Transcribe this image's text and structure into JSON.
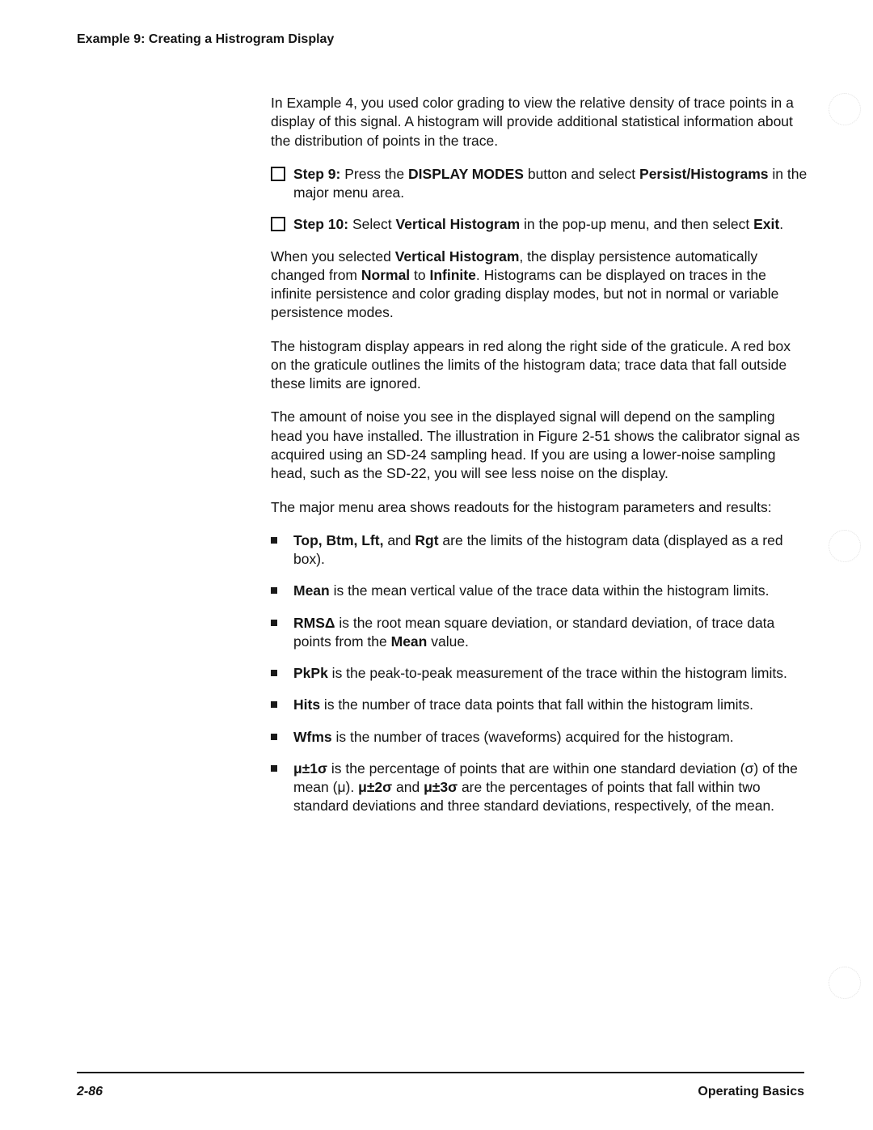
{
  "header": "Example 9: Creating a Histrogram Display",
  "intro": {
    "pre": "In Example 4, you used color grading to view the relative density of trace points in a display of this signal. A histogram will provide additional statistical information about the distribution of points in the trace."
  },
  "step9": {
    "label": "Step 9:",
    "t1": "  Press the ",
    "b1": "DISPLAY MODES",
    "t2": " button and select ",
    "b2": "Persist/Histograms",
    "t3": " in the major menu area."
  },
  "step10": {
    "label": "Step 10:",
    "t1": "  Select ",
    "b1": "Vertical Histogram",
    "t2": " in the pop-up menu, and then select ",
    "b2": "Exit",
    "t3": "."
  },
  "para2": {
    "t1": "When you selected ",
    "b1": "Vertical Histogram",
    "t2": ", the display persistence automatically changed from ",
    "b2": "Normal",
    "t3": " to ",
    "b3": "Infinite",
    "t4": ". Histograms can be displayed on traces in the infinite persistence and color grading display modes, but not in normal or variable persistence modes."
  },
  "para3": "The histogram display appears in red along the right side of the graticule. A red box on the graticule outlines the limits of the histogram data; trace data that fall outside these limits are ignored.",
  "para4": "The amount of noise you see in the displayed signal will depend on the sampling head you have installed. The illustration in Figure 2-51 shows the calibrator signal as acquired using an SD-24 sampling head. If you are using a lower-noise sampling head, such as the SD-22, you will see less noise on the display.",
  "para5": "The major menu area shows readouts for the histogram parameters and results:",
  "bullets": {
    "b1": {
      "bold": "Top, Btm, Lft,",
      "mid": " and ",
      "bold2": "Rgt",
      "rest": " are the limits of the histogram data (displayed as a red box)."
    },
    "b2": {
      "bold": "Mean",
      "rest": " is the mean vertical value of the trace data within the histogram limits."
    },
    "b3": {
      "bold": "RMSΔ",
      "rest": " is the root mean square deviation, or standard deviation, of trace data points from the ",
      "bold2": "Mean",
      "rest2": " value."
    },
    "b4": {
      "bold": "PkPk",
      "rest": " is the peak-to-peak measurement of the trace within the histogram limits."
    },
    "b5": {
      "bold": "Hits",
      "rest": " is the number of trace data points that fall within the histogram limits."
    },
    "b6": {
      "bold": "Wfms",
      "rest": " is the number of traces (waveforms) acquired for the histogram."
    },
    "b7": {
      "bold": "μ±1σ",
      "t1": " is the percentage of points that are within one standard deviation (σ) of the mean (μ). ",
      "bold2": "μ±2σ",
      "t2": " and ",
      "bold3": "μ±3σ",
      "t3": " are the percentages of points that fall within two standard deviations and three standard deviations, respectively, of the mean."
    }
  },
  "footer": {
    "page": "2-86",
    "section": "Operating Basics"
  }
}
